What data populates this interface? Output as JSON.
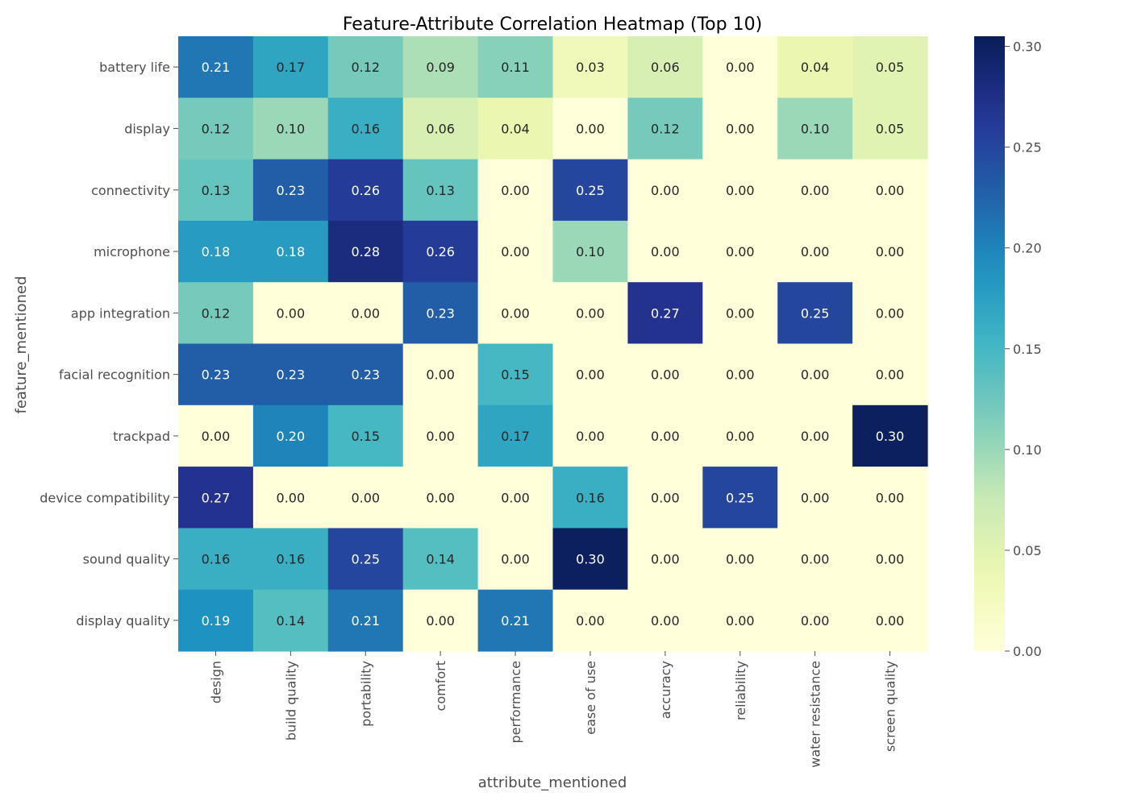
{
  "chart_data": {
    "type": "heatmap",
    "title": "Feature-Attribute Correlation Heatmap (Top 10)",
    "xlabel": "attribute_mentioned",
    "ylabel": "feature_mentioned",
    "x_categories": [
      "design",
      "build quality",
      "portability",
      "comfort",
      "performance",
      "ease of use",
      "accuracy",
      "reliability",
      "water resistance",
      "screen quality"
    ],
    "y_categories": [
      "battery life",
      "display",
      "connectivity",
      "microphone",
      "app integration",
      "facial recognition",
      "trackpad",
      "device compatibility",
      "sound quality",
      "display quality"
    ],
    "values": [
      [
        0.21,
        0.17,
        0.12,
        0.09,
        0.11,
        0.03,
        0.06,
        0.0,
        0.04,
        0.05
      ],
      [
        0.12,
        0.1,
        0.16,
        0.06,
        0.04,
        0.0,
        0.12,
        0.0,
        0.1,
        0.05
      ],
      [
        0.13,
        0.23,
        0.26,
        0.13,
        0.0,
        0.25,
        0.0,
        0.0,
        0.0,
        0.0
      ],
      [
        0.18,
        0.18,
        0.28,
        0.26,
        0.0,
        0.1,
        0.0,
        0.0,
        0.0,
        0.0
      ],
      [
        0.12,
        0.0,
        0.0,
        0.23,
        0.0,
        0.0,
        0.27,
        0.0,
        0.25,
        0.0
      ],
      [
        0.23,
        0.23,
        0.23,
        0.0,
        0.15,
        0.0,
        0.0,
        0.0,
        0.0,
        0.0
      ],
      [
        0.0,
        0.2,
        0.15,
        0.0,
        0.17,
        0.0,
        0.0,
        0.0,
        0.0,
        0.3
      ],
      [
        0.27,
        0.0,
        0.0,
        0.0,
        0.0,
        0.16,
        0.0,
        0.25,
        0.0,
        0.0
      ],
      [
        0.16,
        0.16,
        0.25,
        0.14,
        0.0,
        0.3,
        0.0,
        0.0,
        0.0,
        0.0
      ],
      [
        0.19,
        0.14,
        0.21,
        0.0,
        0.21,
        0.0,
        0.0,
        0.0,
        0.0,
        0.0
      ]
    ],
    "value_format": "0.00",
    "colormap": "YlGnBu",
    "colorbar": {
      "range": [
        0.0,
        0.305
      ],
      "ticks": [
        0.0,
        0.05,
        0.1,
        0.15,
        0.2,
        0.25,
        0.3
      ],
      "tick_labels": [
        "0.00",
        "0.05",
        "0.10",
        "0.15",
        "0.20",
        "0.25",
        "0.30"
      ],
      "position": "right"
    },
    "grid": false,
    "colors": {
      "dark_text": "#262626",
      "light_text": "#ffffff",
      "axis_text": "#4d4d4d",
      "title_text": "#000000"
    }
  }
}
